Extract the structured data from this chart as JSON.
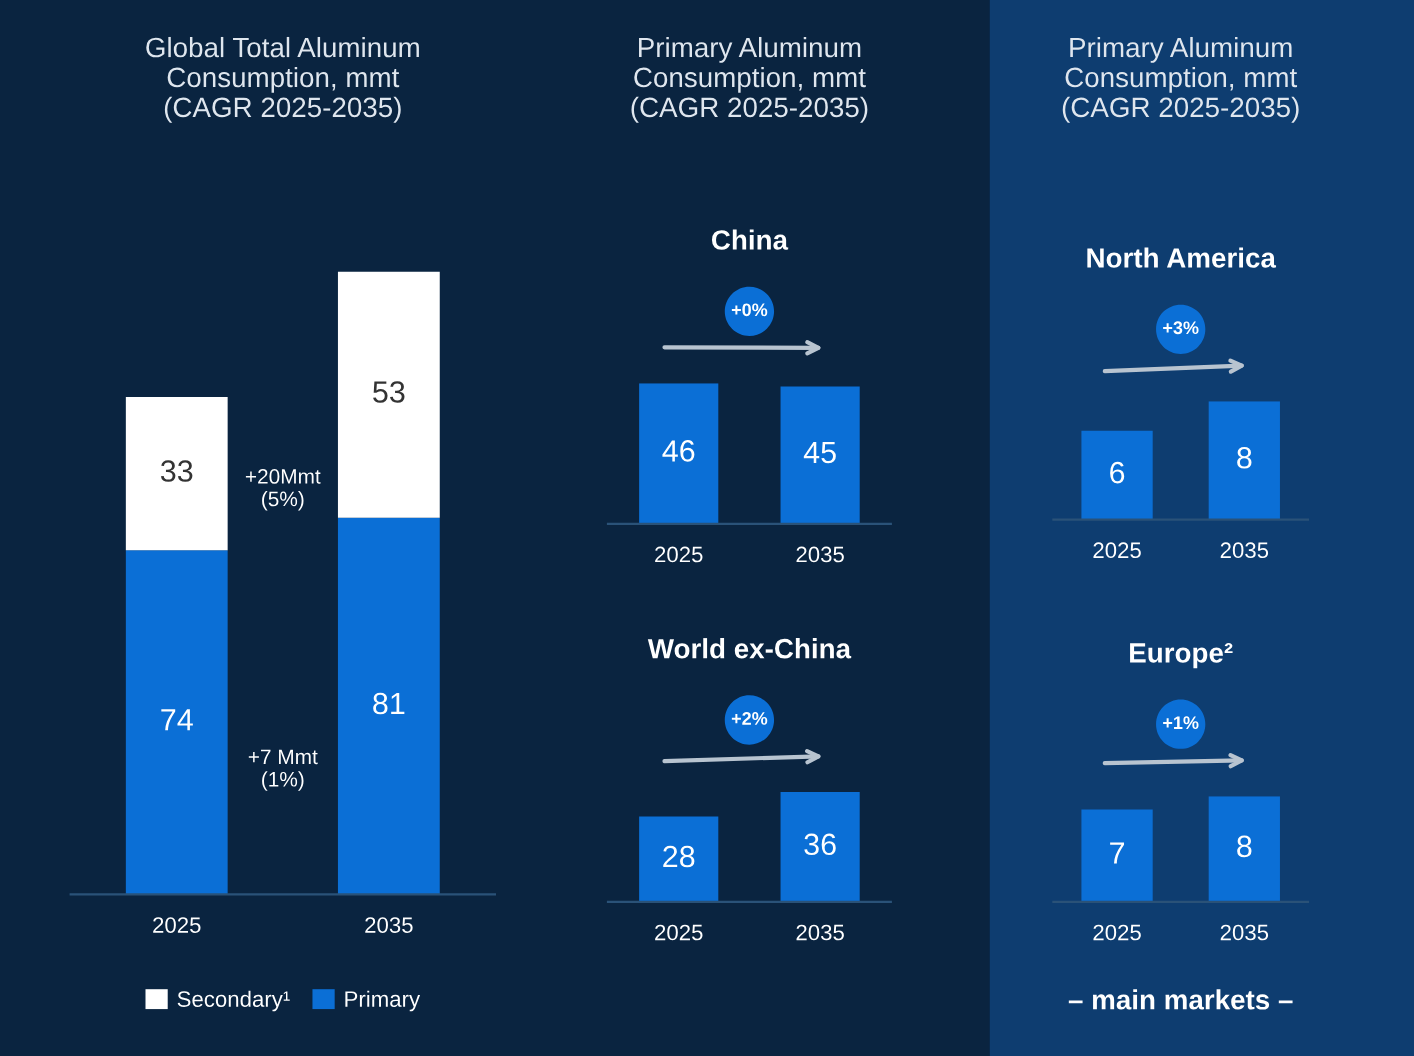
{
  "chart_data": [
    {
      "type": "bar",
      "title": "Global Total Aluminum\nConsumption, mmt\n(CAGR 2025-2035)",
      "categories": [
        "2025",
        "2035"
      ],
      "stacked": true,
      "data_labels": true,
      "legend": "bottom",
      "tick_labels": "x",
      "grid": false,
      "series": [
        {
          "name": "Primary",
          "color": "#0b6fd6",
          "values": [
            74,
            81
          ]
        },
        {
          "name": "Secondary¹",
          "color": "#ffffff",
          "values": [
            33,
            53
          ]
        }
      ],
      "annotations": [
        "+7 Mmt\n(1%)",
        "+20Mmt\n(5%)"
      ]
    },
    {
      "type": "bar",
      "title": "Primary Aluminum\nConsumption, mmt\n(CAGR 2025-2035)",
      "subtitle": "China",
      "categories": [
        "2025",
        "2035"
      ],
      "data_labels": true,
      "tick_labels": "x",
      "grid": false,
      "series": [
        {
          "color": "#0b6fd6",
          "values": [
            46,
            45
          ]
        }
      ],
      "annotations": [
        "+0%"
      ]
    },
    {
      "type": "bar",
      "subtitle": "World ex-China",
      "categories": [
        "2025",
        "2035"
      ],
      "data_labels": true,
      "tick_labels": "x",
      "grid": false,
      "series": [
        {
          "color": "#0b6fd6",
          "values": [
            28,
            36
          ]
        }
      ],
      "annotations": [
        "+2%"
      ]
    },
    {
      "type": "bar",
      "title": "Primary Aluminum\nConsumption, mmt\n(CAGR 2025-2035)",
      "subtitle": "North America",
      "categories": [
        "2025",
        "2035"
      ],
      "data_labels": true,
      "tick_labels": "x",
      "grid": false,
      "series": [
        {
          "color": "#0b6fd6",
          "values": [
            6,
            8
          ]
        }
      ],
      "annotations": [
        "+3%"
      ]
    },
    {
      "type": "bar",
      "subtitle": "Europe²",
      "categories": [
        "2025",
        "2035"
      ],
      "data_labels": true,
      "tick_labels": "x",
      "grid": false,
      "series": [
        {
          "color": "#0b6fd6",
          "values": [
            7,
            8
          ]
        }
      ],
      "annotations": [
        "+1%",
        "– main markets –"
      ]
    }
  ]
}
